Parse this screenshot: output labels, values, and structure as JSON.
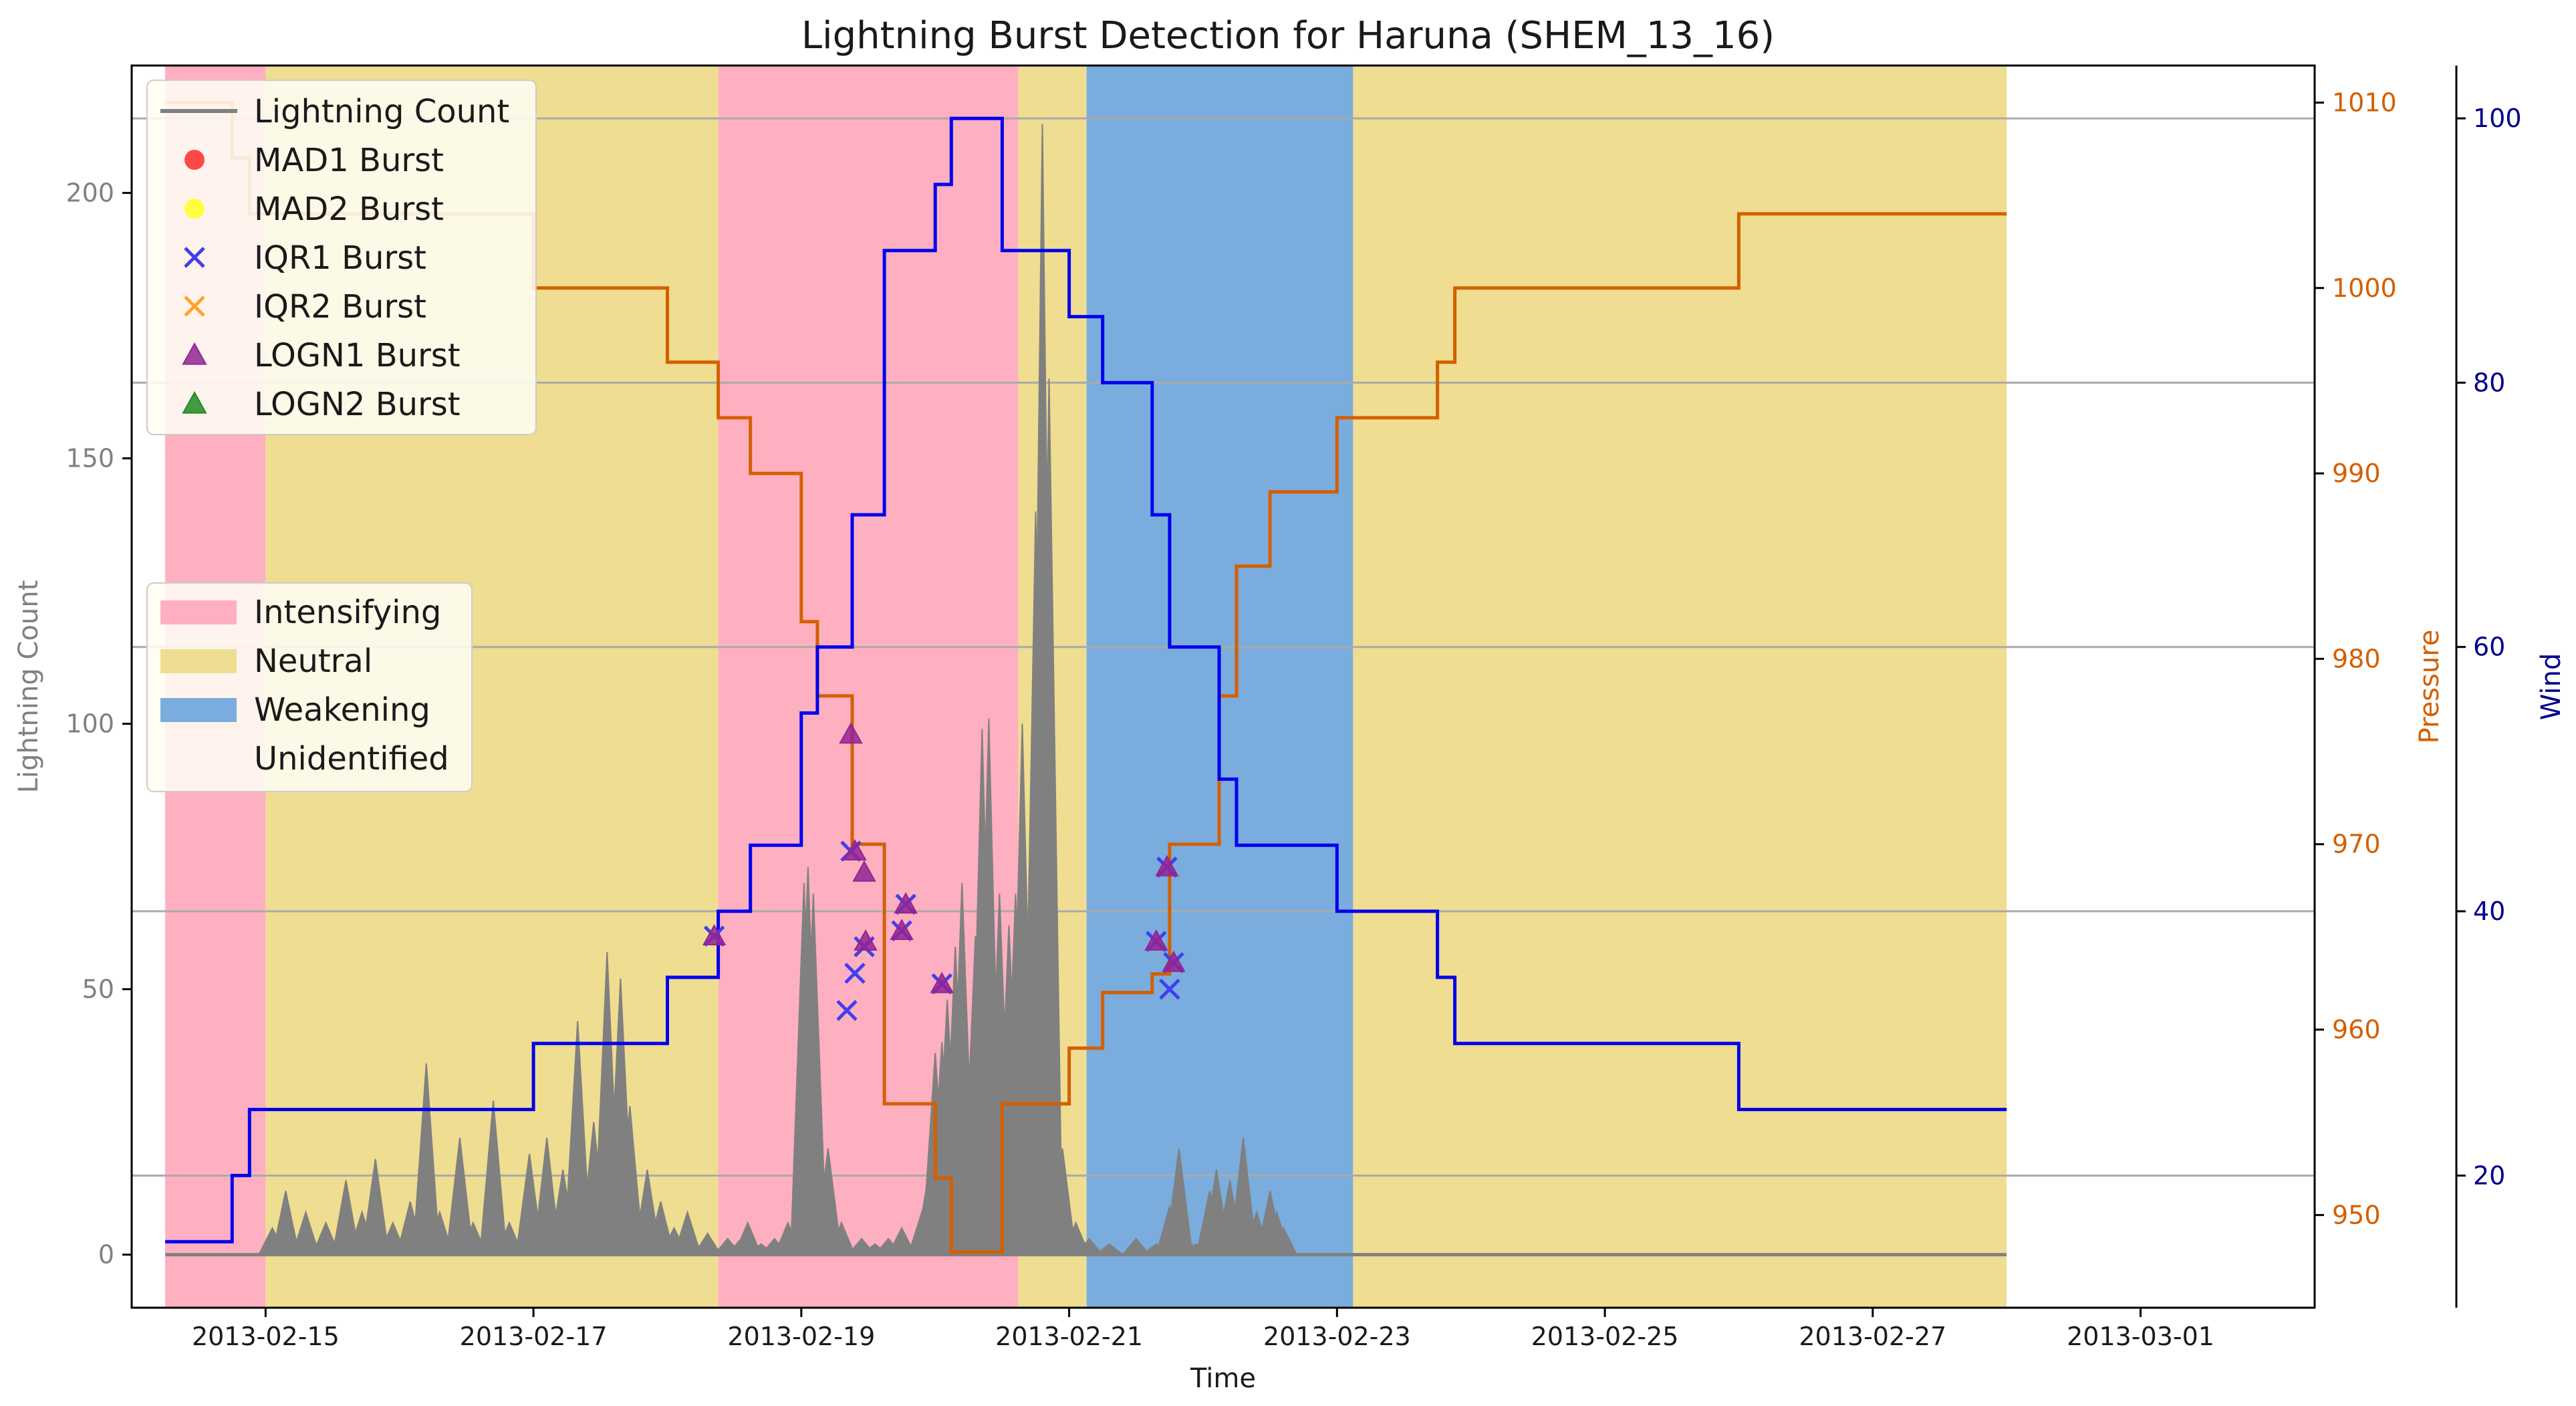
{
  "chart_data": {
    "type": "line",
    "title": "Lightning Burst Detection for Haruna (SHEM_13_16)",
    "xlabel": "Time",
    "ylabel": "Lightning Count",
    "ylabel_pressure": "Pressure",
    "ylabel_wind": "Wind",
    "xlim": [
      0,
      16.3
    ],
    "x_start_date": "2013-02-14",
    "ylim": [
      -10,
      224
    ],
    "ylim_pressure": [
      945,
      1012
    ],
    "ylim_wind": [
      10,
      104
    ],
    "x_ticks": [
      {
        "pos": 1,
        "label": "2013-02-15"
      },
      {
        "pos": 3,
        "label": "2013-02-17"
      },
      {
        "pos": 5,
        "label": "2013-02-19"
      },
      {
        "pos": 7,
        "label": "2013-02-21"
      },
      {
        "pos": 9,
        "label": "2013-02-23"
      },
      {
        "pos": 11,
        "label": "2013-02-25"
      },
      {
        "pos": 13,
        "label": "2013-02-27"
      },
      {
        "pos": 15,
        "label": "2013-03-01"
      }
    ],
    "y_ticks": [
      0,
      50,
      100,
      150,
      200
    ],
    "pressure_ticks": [
      950,
      960,
      970,
      980,
      990,
      1000,
      1010
    ],
    "wind_ticks": [
      20,
      40,
      60,
      80,
      100
    ],
    "wind_grid": [
      20,
      40,
      60,
      80,
      100
    ],
    "colors": {
      "intensifying": "#ffb0c0",
      "neutral": "#efdd91",
      "weakening": "#7aaddd",
      "lightning": "#808080",
      "pressure": "#d45f00",
      "wind": "#0000ee",
      "mad1": "#ff2a2a",
      "mad2": "#ffff22",
      "iqr1": "#3f3fee",
      "iqr2": "#ffa42a",
      "logn1": "#932593",
      "logn2": "#228b22"
    },
    "phases": [
      {
        "phase": "Intensifying",
        "start": 0.25,
        "end": 1.0
      },
      {
        "phase": "Neutral",
        "start": 1.0,
        "end": 4.38
      },
      {
        "phase": "Intensifying",
        "start": 4.38,
        "end": 6.62
      },
      {
        "phase": "Neutral",
        "start": 6.62,
        "end": 7.13
      },
      {
        "phase": "Weakening",
        "start": 7.13,
        "end": 9.12
      },
      {
        "phase": "Neutral",
        "start": 9.12,
        "end": 14.0
      }
    ],
    "series": [
      {
        "name": "Lightning Count",
        "peaks": [
          [
            1.05,
            5
          ],
          [
            1.15,
            12
          ],
          [
            1.3,
            8
          ],
          [
            1.45,
            6
          ],
          [
            1.6,
            14
          ],
          [
            1.72,
            8
          ],
          [
            1.82,
            18
          ],
          [
            1.95,
            6
          ],
          [
            2.08,
            10
          ],
          [
            2.2,
            36
          ],
          [
            2.3,
            8
          ],
          [
            2.45,
            22
          ],
          [
            2.55,
            6
          ],
          [
            2.7,
            29
          ],
          [
            2.82,
            6
          ],
          [
            2.97,
            19
          ],
          [
            3.1,
            22
          ],
          [
            3.22,
            16
          ],
          [
            3.33,
            44
          ],
          [
            3.45,
            25
          ],
          [
            3.55,
            57
          ],
          [
            3.65,
            52
          ],
          [
            3.72,
            28
          ],
          [
            3.85,
            16
          ],
          [
            3.95,
            10
          ],
          [
            4.05,
            5
          ],
          [
            4.15,
            8
          ],
          [
            4.3,
            4
          ],
          [
            4.45,
            3
          ],
          [
            4.55,
            3
          ],
          [
            4.65,
            2
          ],
          [
            4.6,
            6
          ],
          [
            4.7,
            2
          ],
          [
            4.8,
            3
          ],
          [
            4.9,
            6
          ],
          [
            5.02,
            70
          ],
          [
            5.05,
            73
          ],
          [
            5.09,
            68
          ],
          [
            5.2,
            20
          ],
          [
            5.3,
            6
          ],
          [
            5.45,
            3
          ],
          [
            5.55,
            2
          ],
          [
            5.65,
            3
          ],
          [
            5.75,
            5
          ],
          [
            5.83,
            2
          ],
          [
            5.9,
            8
          ],
          [
            5.95,
            15
          ],
          [
            6.0,
            38
          ],
          [
            6.05,
            40
          ],
          [
            6.09,
            48
          ],
          [
            6.15,
            58
          ],
          [
            6.2,
            70
          ],
          [
            6.3,
            60
          ],
          [
            6.35,
            99
          ],
          [
            6.4,
            101
          ],
          [
            6.48,
            68
          ],
          [
            6.55,
            62
          ],
          [
            6.6,
            68
          ],
          [
            6.65,
            100
          ],
          [
            6.75,
            140
          ],
          [
            6.8,
            213
          ],
          [
            6.85,
            165
          ],
          [
            6.95,
            20
          ],
          [
            7.05,
            6
          ],
          [
            7.15,
            3
          ],
          [
            7.3,
            2
          ],
          [
            7.5,
            3
          ],
          [
            7.65,
            2
          ],
          [
            7.75,
            9
          ],
          [
            7.82,
            20
          ],
          [
            7.88,
            3
          ],
          [
            7.95,
            2
          ],
          [
            8.05,
            12
          ],
          [
            8.1,
            16
          ],
          [
            8.2,
            14
          ],
          [
            8.3,
            22
          ],
          [
            8.4,
            8
          ],
          [
            8.5,
            12
          ],
          [
            8.55,
            8
          ],
          [
            8.6,
            5
          ]
        ],
        "values": [
          0
        ]
      },
      {
        "name": "Pressure",
        "steps": [
          [
            0.25,
            1010
          ],
          [
            0.75,
            1010
          ],
          [
            0.75,
            1007
          ],
          [
            0.88,
            1007
          ],
          [
            0.88,
            1004
          ],
          [
            3.0,
            1004
          ],
          [
            3.0,
            1000
          ],
          [
            4.0,
            1000
          ],
          [
            4.0,
            996
          ],
          [
            4.38,
            996
          ],
          [
            4.38,
            993
          ],
          [
            4.62,
            993
          ],
          [
            4.62,
            990
          ],
          [
            5.0,
            990
          ],
          [
            5.0,
            982
          ],
          [
            5.12,
            982
          ],
          [
            5.12,
            978
          ],
          [
            5.38,
            978
          ],
          [
            5.38,
            970
          ],
          [
            5.62,
            970
          ],
          [
            5.62,
            956
          ],
          [
            6.0,
            956
          ],
          [
            6.0,
            952
          ],
          [
            6.12,
            952
          ],
          [
            6.12,
            948
          ],
          [
            6.5,
            948
          ],
          [
            6.5,
            956
          ],
          [
            7.0,
            956
          ],
          [
            7.0,
            959
          ],
          [
            7.25,
            959
          ],
          [
            7.25,
            962
          ],
          [
            7.62,
            962
          ],
          [
            7.62,
            963
          ],
          [
            7.75,
            963
          ],
          [
            7.75,
            970
          ],
          [
            8.12,
            970
          ],
          [
            8.12,
            978
          ],
          [
            8.25,
            978
          ],
          [
            8.25,
            985
          ],
          [
            8.5,
            985
          ],
          [
            8.5,
            989
          ],
          [
            9.0,
            989
          ],
          [
            9.0,
            993
          ],
          [
            9.75,
            993
          ],
          [
            9.75,
            996
          ],
          [
            9.88,
            996
          ],
          [
            9.88,
            1000
          ],
          [
            12.0,
            1000
          ],
          [
            12.0,
            1004
          ],
          [
            14.0,
            1004
          ]
        ]
      },
      {
        "name": "Wind",
        "steps": [
          [
            0.25,
            15
          ],
          [
            0.75,
            15
          ],
          [
            0.75,
            20
          ],
          [
            0.88,
            20
          ],
          [
            0.88,
            25
          ],
          [
            3.0,
            25
          ],
          [
            3.0,
            30
          ],
          [
            4.0,
            30
          ],
          [
            4.0,
            35
          ],
          [
            4.38,
            35
          ],
          [
            4.38,
            40
          ],
          [
            4.62,
            40
          ],
          [
            4.62,
            45
          ],
          [
            5.0,
            45
          ],
          [
            5.0,
            55
          ],
          [
            5.12,
            55
          ],
          [
            5.12,
            60
          ],
          [
            5.38,
            60
          ],
          [
            5.38,
            70
          ],
          [
            5.62,
            70
          ],
          [
            5.62,
            90
          ],
          [
            6.0,
            90
          ],
          [
            6.0,
            95
          ],
          [
            6.12,
            95
          ],
          [
            6.12,
            100
          ],
          [
            6.5,
            100
          ],
          [
            6.5,
            90
          ],
          [
            7.0,
            90
          ],
          [
            7.0,
            85
          ],
          [
            7.25,
            85
          ],
          [
            7.25,
            80
          ],
          [
            7.62,
            80
          ],
          [
            7.62,
            70
          ],
          [
            7.75,
            70
          ],
          [
            7.75,
            60
          ],
          [
            8.12,
            60
          ],
          [
            8.12,
            50
          ],
          [
            8.25,
            50
          ],
          [
            8.25,
            45
          ],
          [
            9.0,
            45
          ],
          [
            9.0,
            40
          ],
          [
            9.75,
            40
          ],
          [
            9.75,
            35
          ],
          [
            9.88,
            35
          ],
          [
            9.88,
            30
          ],
          [
            12.0,
            30
          ],
          [
            12.0,
            25
          ],
          [
            14.0,
            25
          ]
        ]
      }
    ],
    "bursts": {
      "IQR1": [
        [
          4.35,
          60
        ],
        [
          5.37,
          76
        ],
        [
          5.34,
          46
        ],
        [
          5.4,
          53
        ],
        [
          5.47,
          58
        ],
        [
          5.75,
          61
        ],
        [
          5.78,
          66
        ],
        [
          6.05,
          51
        ],
        [
          7.65,
          59
        ],
        [
          7.73,
          73
        ],
        [
          7.75,
          50
        ],
        [
          7.78,
          55
        ]
      ],
      "LOGN1": [
        [
          4.35,
          60
        ],
        [
          5.37,
          98
        ],
        [
          5.4,
          76
        ],
        [
          5.47,
          72
        ],
        [
          5.48,
          59
        ],
        [
          5.75,
          61
        ],
        [
          5.78,
          66
        ],
        [
          6.05,
          51
        ],
        [
          7.65,
          59
        ],
        [
          7.73,
          73
        ],
        [
          7.78,
          55
        ]
      ]
    },
    "legend1": {
      "placement": "top-left",
      "items": [
        "Lightning Count",
        "MAD1 Burst",
        "MAD2 Burst",
        "IQR1 Burst",
        "IQR2 Burst",
        "LOGN1 Burst",
        "LOGN2 Burst"
      ]
    },
    "legend2": {
      "placement": "center-left",
      "items": [
        "Intensifying",
        "Neutral",
        "Weakening",
        "Unidentified"
      ]
    }
  }
}
